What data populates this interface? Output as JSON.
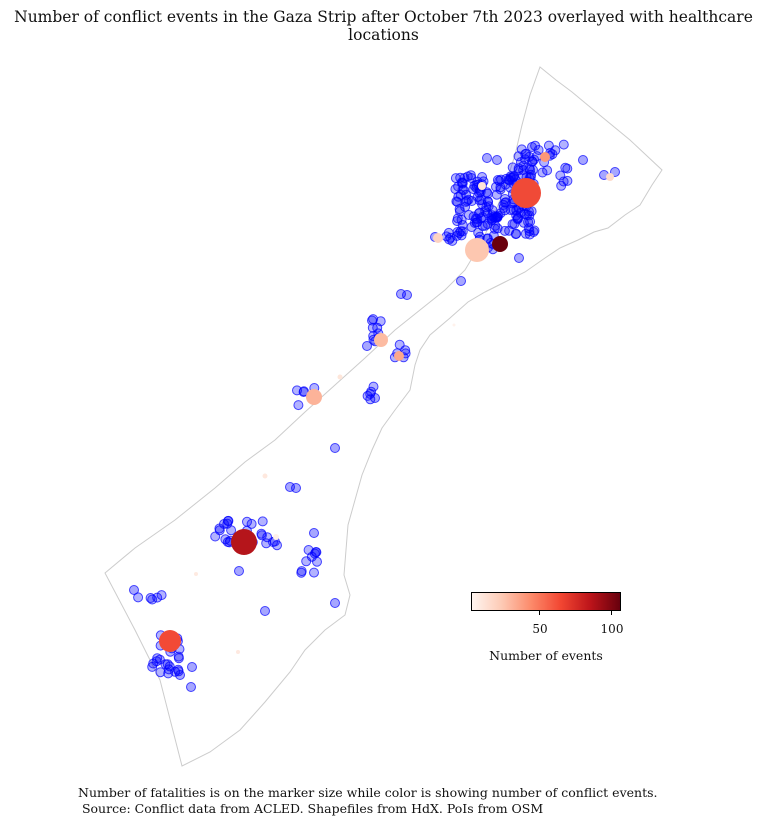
{
  "title": "Number of conflict events in the Gaza Strip after October 7th 2023 overlayed with healthcare locations",
  "colorbar": {
    "label": "Number of events",
    "ticks": [
      50,
      100
    ],
    "range": [
      1,
      108
    ],
    "colormap": [
      "#fff5f0",
      "#fdcab5",
      "#fc8a6a",
      "#f24632",
      "#bc141a",
      "#67000d"
    ]
  },
  "caption": {
    "line1": "Number of fatalities is on the marker size while color is showing number of conflict events.",
    "line2": " Source: Conflict data from ACLED. Shapefiles from HdX. PoIs from OSM"
  },
  "colors": {
    "boundary": "#cccccc",
    "healthcare": "#0000ff"
  },
  "legend_encoding": {
    "marker_size": "fatalities",
    "marker_color": "conflict events"
  }
}
